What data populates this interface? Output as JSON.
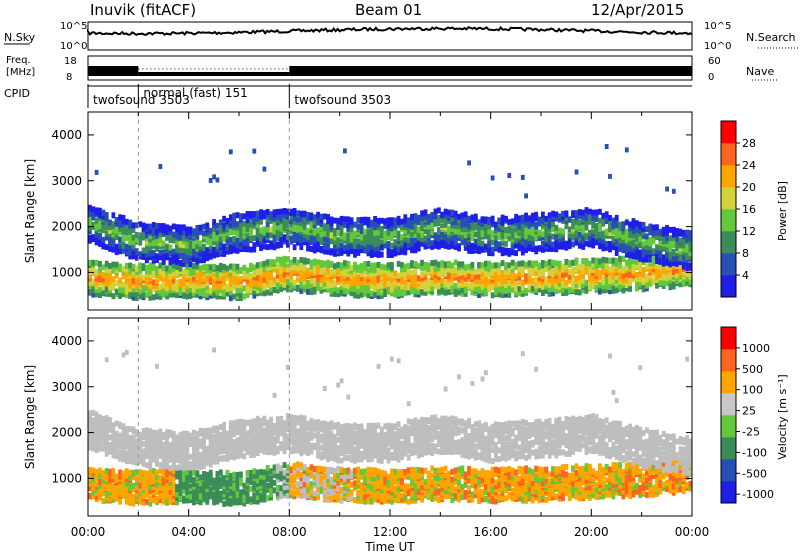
{
  "header": {
    "station": "Inuvik (fitACF)",
    "beam": "Beam 01",
    "date": "12/Apr/2015"
  },
  "status_panels": {
    "nsky_label": "N.Sky",
    "nsky_ticks": [
      "10^5",
      "10^0"
    ],
    "nsearch_label": "N.Search",
    "nsearch_ticks": [
      "10^5",
      "10^0"
    ],
    "freq_label": "Freq.",
    "freq_unit": "[MHz]",
    "freq_ticks": [
      "18",
      "8"
    ],
    "nave_label": "Nave",
    "nave_ticks": [
      "60",
      "0"
    ],
    "cpid_label": "CPID",
    "cpid_segments": [
      {
        "name": "twofsound 3503",
        "start_h": 0,
        "end_h": 2
      },
      {
        "name": "normal (fast) 151",
        "start_h": 2,
        "end_h": 8
      },
      {
        "name": "twofsound 3503",
        "start_h": 8,
        "end_h": 24
      }
    ]
  },
  "chart_data": [
    {
      "type": "heatmap",
      "name": "power",
      "ylabel": "Slant Range [km]",
      "ylim": [
        180,
        4500
      ],
      "xlim": [
        0,
        24
      ],
      "yticks": [
        "1000",
        "2000",
        "3000",
        "4000"
      ],
      "colorbar_label": "Power [dB]",
      "colorbar_ticks": [
        "4",
        "8",
        "12",
        "16",
        "20",
        "24",
        "28"
      ],
      "colorbar_range": [
        0,
        32
      ],
      "colorbar_colors": [
        "#1e1ee6",
        "#2850b4",
        "#3c8c5a",
        "#64c83c",
        "#d2d23c",
        "#ffa500",
        "#ff641e",
        "#ff0000"
      ],
      "echo_bands": [
        {
          "t0": 0,
          "t1": 24,
          "center_km": [
            900,
            820,
            850,
            800,
            1000,
            880,
            850,
            900,
            870,
            900,
            950,
            1000,
            1100
          ],
          "width_km": 350,
          "level_db": 24
        },
        {
          "t0": 0,
          "t1": 24,
          "center_km": [
            2100,
            1700,
            1600,
            1900,
            2000,
            1800,
            1800,
            2000,
            1800,
            1900,
            2000,
            1700,
            1500
          ],
          "width_km": 400,
          "level_db": 14
        }
      ]
    },
    {
      "type": "heatmap",
      "name": "velocity",
      "ylabel": "Slant Range [km]",
      "ylim": [
        180,
        4500
      ],
      "xlim": [
        0,
        24
      ],
      "yticks": [
        "1000",
        "2000",
        "3000",
        "4000"
      ],
      "xticks": [
        "00:00",
        "04:00",
        "08:00",
        "12:00",
        "16:00",
        "20:00",
        "00:00"
      ],
      "xlabel": "Time UT",
      "colorbar_label": "Velocity [m s⁻¹]",
      "colorbar_ticks": [
        "1000",
        "500",
        "100",
        "25",
        "-25",
        "-100",
        "-500",
        "-1000"
      ],
      "colorbar_colors": [
        "#1e1ee6",
        "#2850b4",
        "#3c8c5a",
        "#64c83c",
        "#c8c8c8",
        "#ffa500",
        "#ff641e",
        "#ff0000"
      ],
      "ground_scatter_color": "#bebebe"
    }
  ],
  "time_ticks": [
    "00:00",
    "04:00",
    "08:00",
    "12:00",
    "16:00",
    "20:00",
    "00:00"
  ],
  "xlabel": "Time UT"
}
